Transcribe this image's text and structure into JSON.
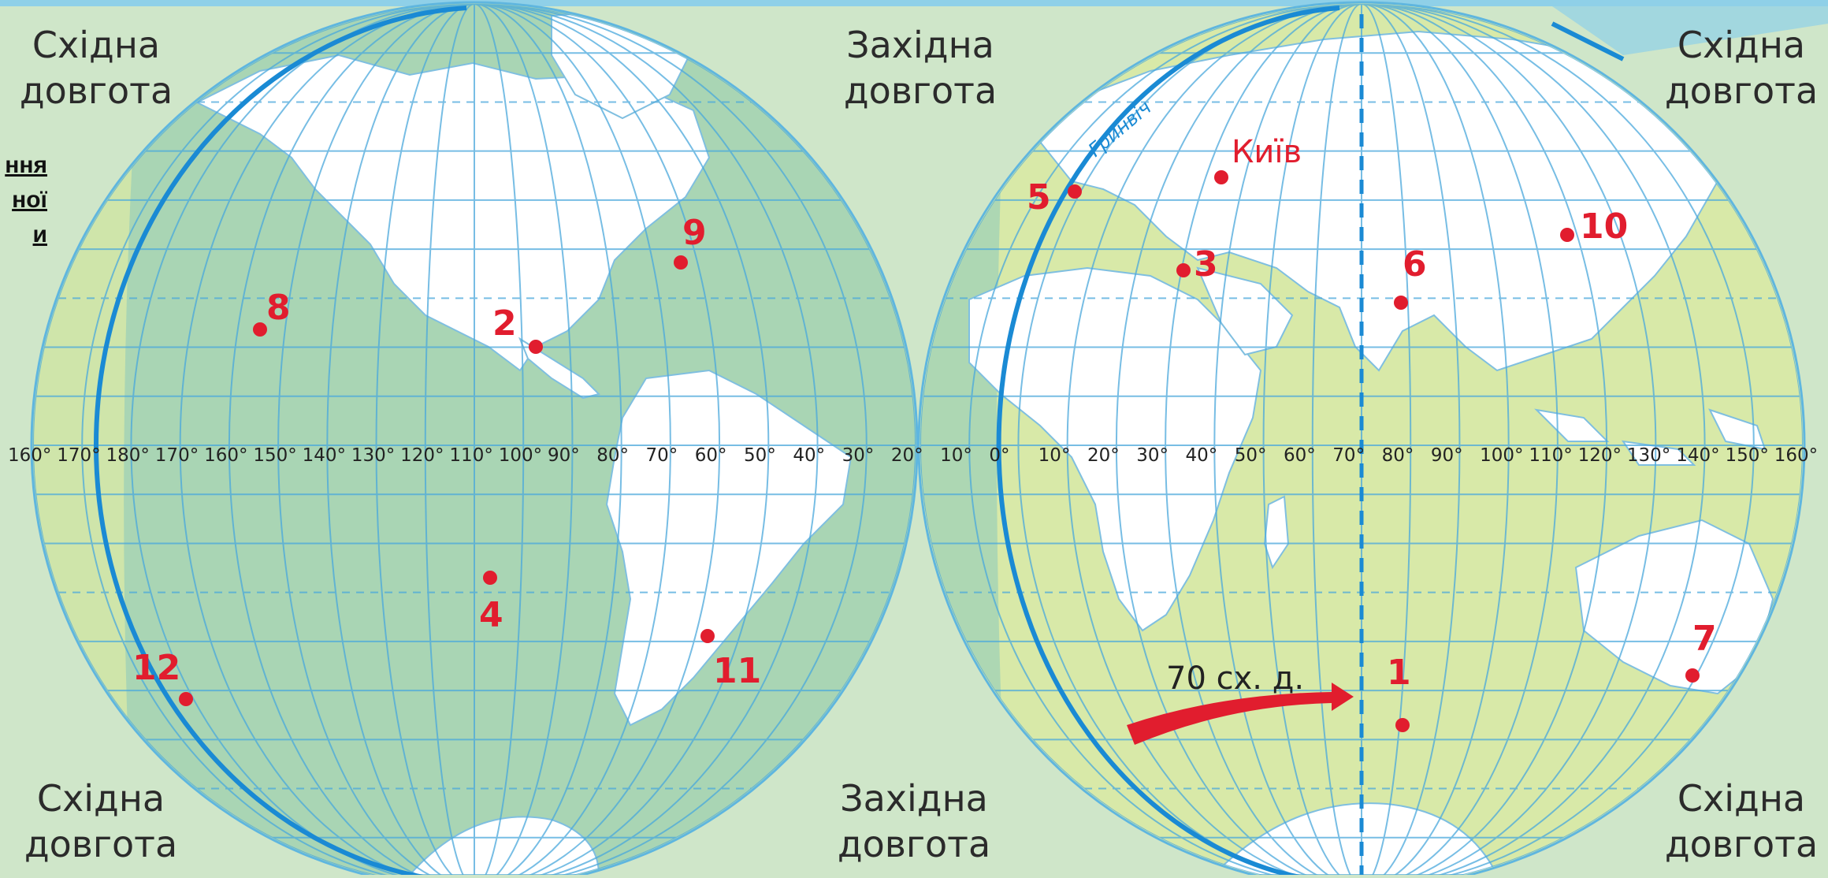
{
  "labels": {
    "top_left": [
      "Східна",
      "довгота"
    ],
    "top_center": [
      "Західна",
      "довгота"
    ],
    "top_right": [
      "Східна",
      "довгота"
    ],
    "bottom_left": [
      "Східна",
      "довгота"
    ],
    "bottom_center": [
      "Західна",
      "довгота"
    ],
    "bottom_right": [
      "Східна",
      "довгота"
    ]
  },
  "side_link_fragments": [
    "ння",
    "ної",
    "и"
  ],
  "meridian_label": "Гринвіч",
  "city_label": "Київ",
  "arrow_label": "70 сх. д.",
  "longitude_scale": [
    "160°",
    "170°",
    "180°",
    "170°",
    "160°",
    "150°",
    "140°",
    "130°",
    "120°",
    "110°",
    "100°",
    "90°",
    "80°",
    "70°",
    "60°",
    "50°",
    "40°",
    "30°",
    "20°",
    "10°",
    "0°",
    "10°",
    "20°",
    "30°",
    "40°",
    "50°",
    "60°",
    "70°",
    "80°",
    "90°",
    "100°",
    "110°",
    "120°",
    "130°",
    "140°",
    "150°",
    "160°"
  ],
  "points": [
    {
      "label": "1"
    },
    {
      "label": "2"
    },
    {
      "label": "3"
    },
    {
      "label": "4"
    },
    {
      "label": "5"
    },
    {
      "label": "6"
    },
    {
      "label": "7"
    },
    {
      "label": "8"
    },
    {
      "label": "9"
    },
    {
      "label": "10"
    },
    {
      "label": "11"
    },
    {
      "label": "12"
    }
  ],
  "colors": {
    "ocean_west": "#a9d5b4",
    "ocean_east": "#d8e9a8",
    "land": "#ffffff",
    "grid": "#4aa8dc",
    "meridian": "#1a8ad4",
    "point": "#e11d2e",
    "label": "#e11d2e"
  }
}
